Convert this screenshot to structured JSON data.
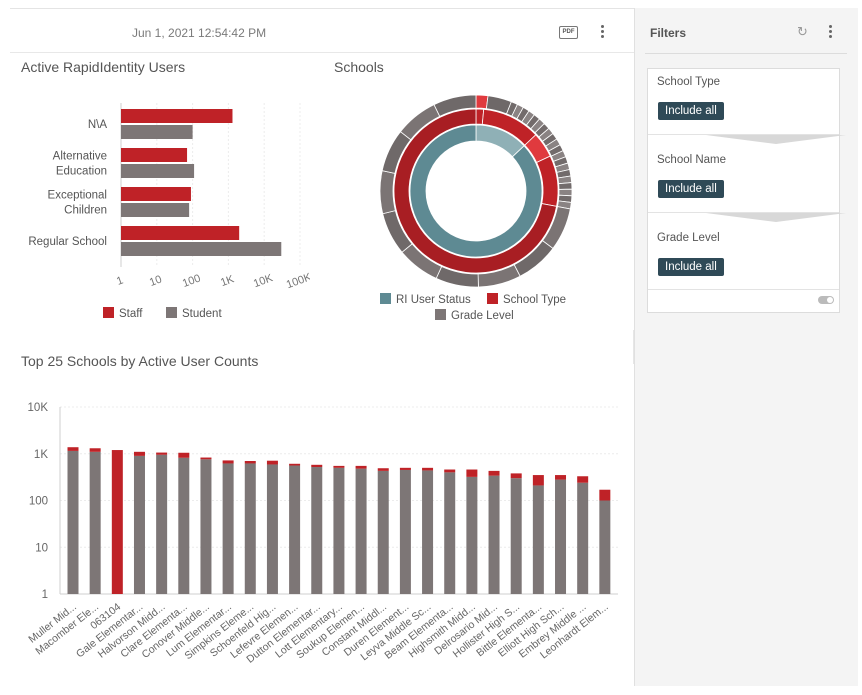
{
  "header": {
    "timestamp": "Jun 1, 2021 12:54:42 PM",
    "pdf_label": "PDF"
  },
  "panels": {
    "users_title": "Active RapidIdentity Users",
    "schools_title": "Schools",
    "top25_title": "Top 25 Schools by Active User Counts"
  },
  "filters": {
    "title": "Filters",
    "groups": [
      {
        "label": "School Type",
        "value": "Include all"
      },
      {
        "label": "School Name",
        "value": "Include all"
      },
      {
        "label": "Grade Level",
        "value": "Include all"
      }
    ]
  },
  "colors": {
    "staff": "#bf2227",
    "student": "#7d7676",
    "status": "#5e8a93",
    "accent_dark": "#2f4a57"
  },
  "chart_data": [
    {
      "type": "bar",
      "orientation": "horizontal",
      "categories": [
        "N\\A",
        "Alternative Education",
        "Exceptional Children",
        "Regular School"
      ],
      "category_lines": [
        [
          "N\\A"
        ],
        [
          "Alternative",
          "Education"
        ],
        [
          "Exceptional",
          "Children"
        ],
        [
          "Regular School"
        ]
      ],
      "series": [
        {
          "name": "Staff",
          "values": [
            1300,
            70,
            90,
            2000
          ]
        },
        {
          "name": "Student",
          "values": [
            100,
            110,
            80,
            30000
          ]
        }
      ],
      "x_scale": "log",
      "xlim": [
        1,
        100000
      ],
      "xticks": [
        "1",
        "10",
        "100",
        "1K",
        "10K",
        "100K"
      ]
    },
    {
      "type": "pie",
      "rings": [
        "RI User Status",
        "School Type",
        "Grade Level"
      ],
      "legend": [
        "RI User Status",
        "School Type",
        "Grade Level"
      ]
    },
    {
      "type": "bar",
      "stacked": true,
      "y_scale": "log",
      "ylim": [
        1,
        10000
      ],
      "yticks": [
        "1",
        "10",
        "100",
        "1K",
        "10K"
      ],
      "categories": [
        "Muller Mid...",
        "Macomber Ele...",
        "063104",
        "Gale Elementar...",
        "Halvorson Midd...",
        "Clare Elementa...",
        "Conover Middle...",
        "Lum Elementar...",
        "Simpkins Eleme...",
        "Schoenfeld Hig...",
        "Lefevre Elemen...",
        "Dutton Elementar...",
        "Lott Elementary...",
        "Soukup Elemen...",
        "Constant Middl...",
        "Duren Element...",
        "Leyva Middle Sc...",
        "Beam Elementa...",
        "Highsmith Midd...",
        "Delrosario Mid...",
        "Hollister High S...",
        "Bittle Elementa...",
        "Elliott High Sch...",
        "Embrey Middle ...",
        "Leonhardt Elem..."
      ],
      "series": [
        {
          "name": "Student",
          "values": [
            1150,
            1100,
            0,
            900,
            950,
            820,
            760,
            620,
            620,
            590,
            560,
            520,
            500,
            480,
            430,
            450,
            440,
            400,
            320,
            340,
            300,
            210,
            280,
            240,
            100
          ]
        },
        {
          "name": "Staff",
          "values": [
            230,
            210,
            1200,
            200,
            110,
            230,
            70,
            100,
            80,
            120,
            50,
            60,
            50,
            70,
            60,
            50,
            60,
            60,
            140,
            90,
            80,
            140,
            70,
            90,
            70
          ]
        }
      ]
    }
  ]
}
